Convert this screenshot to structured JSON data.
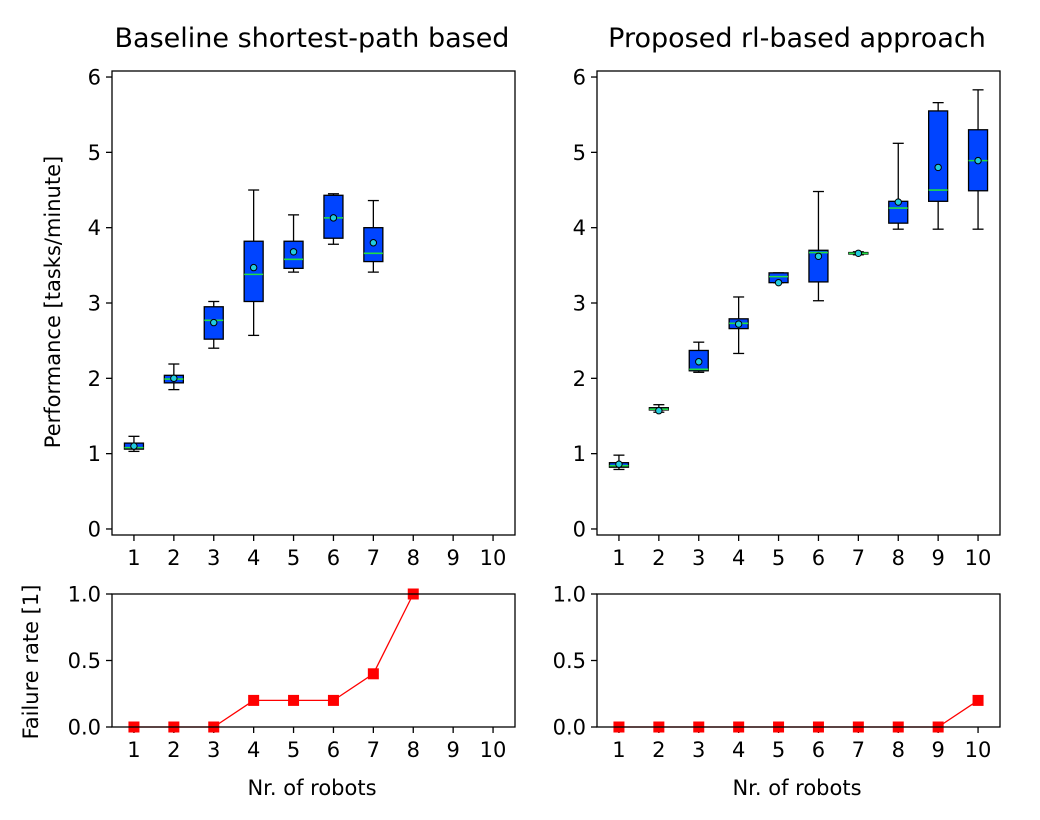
{
  "chart_data": [
    {
      "type": "box",
      "title": "Baseline shortest-path based",
      "ylabel": "Performance [tasks/minute]",
      "xlabel": "",
      "xticks": [
        "1",
        "2",
        "3",
        "4",
        "5",
        "6",
        "7",
        "8",
        "9",
        "10"
      ],
      "yticks": [
        "0",
        "1",
        "2",
        "3",
        "4",
        "5",
        "6"
      ],
      "ylim": [
        -0.08,
        6.08
      ],
      "boxes": [
        {
          "x": 1,
          "whislo": 1.03,
          "q1": 1.06,
          "med": 1.08,
          "q3": 1.14,
          "whishi": 1.23,
          "mean": 1.1
        },
        {
          "x": 2,
          "whislo": 1.85,
          "q1": 1.94,
          "med": 1.99,
          "q3": 2.04,
          "whishi": 2.19,
          "mean": 2.0
        },
        {
          "x": 3,
          "whislo": 2.4,
          "q1": 2.52,
          "med": 2.77,
          "q3": 2.95,
          "whishi": 3.02,
          "mean": 2.74
        },
        {
          "x": 4,
          "whislo": 2.57,
          "q1": 3.02,
          "med": 3.38,
          "q3": 3.82,
          "whishi": 4.5,
          "mean": 3.47
        },
        {
          "x": 5,
          "whislo": 3.41,
          "q1": 3.46,
          "med": 3.58,
          "q3": 3.82,
          "whishi": 4.17,
          "mean": 3.68
        },
        {
          "x": 6,
          "whislo": 3.78,
          "q1": 3.86,
          "med": 4.13,
          "q3": 4.43,
          "whishi": 4.45,
          "mean": 4.13
        },
        {
          "x": 7,
          "whislo": 3.41,
          "q1": 3.55,
          "med": 3.66,
          "q3": 4.0,
          "whishi": 4.36,
          "mean": 3.8
        }
      ]
    },
    {
      "type": "box",
      "title": "Proposed rl-based approach",
      "ylabel": "",
      "xlabel": "",
      "xticks": [
        "1",
        "2",
        "3",
        "4",
        "5",
        "6",
        "7",
        "8",
        "9",
        "10"
      ],
      "yticks": [
        "0",
        "1",
        "2",
        "3",
        "4",
        "5",
        "6"
      ],
      "ylim": [
        -0.08,
        6.08
      ],
      "boxes": [
        {
          "x": 1,
          "whislo": 0.79,
          "q1": 0.82,
          "med": 0.84,
          "q3": 0.88,
          "whishi": 0.98,
          "mean": 0.86
        },
        {
          "x": 2,
          "whislo": 1.55,
          "q1": 1.58,
          "med": 1.59,
          "q3": 1.61,
          "whishi": 1.65,
          "mean": 1.57
        },
        {
          "x": 3,
          "whislo": 2.08,
          "q1": 2.1,
          "med": 2.12,
          "q3": 2.37,
          "whishi": 2.48,
          "mean": 2.22
        },
        {
          "x": 4,
          "whislo": 2.33,
          "q1": 2.66,
          "med": 2.73,
          "q3": 2.79,
          "whishi": 3.08,
          "mean": 2.72
        },
        {
          "x": 5,
          "whislo": 3.27,
          "q1": 3.27,
          "med": 3.35,
          "q3": 3.4,
          "whishi": 3.4,
          "mean": 3.27
        },
        {
          "x": 6,
          "whislo": 3.03,
          "q1": 3.28,
          "med": 3.67,
          "q3": 3.7,
          "whishi": 4.48,
          "mean": 3.62
        },
        {
          "x": 7,
          "whislo": 3.64,
          "q1": 3.65,
          "med": 3.66,
          "q3": 3.67,
          "whishi": 3.68,
          "mean": 3.66
        },
        {
          "x": 8,
          "whislo": 3.98,
          "q1": 4.06,
          "med": 4.26,
          "q3": 4.35,
          "whishi": 5.12,
          "mean": 4.34
        },
        {
          "x": 9,
          "whislo": 3.98,
          "q1": 4.35,
          "med": 4.5,
          "q3": 5.55,
          "whishi": 5.66,
          "mean": 4.8
        },
        {
          "x": 10,
          "whislo": 3.98,
          "q1": 4.49,
          "med": 4.89,
          "q3": 5.3,
          "whishi": 5.83,
          "mean": 4.89
        }
      ]
    },
    {
      "type": "line",
      "title": "",
      "ylabel": "Failure rate [1]",
      "xlabel": "Nr. of robots",
      "xticks": [
        "1",
        "2",
        "3",
        "4",
        "5",
        "6",
        "7",
        "8",
        "9",
        "10"
      ],
      "yticks": [
        "0.0",
        "0.5",
        "1.0"
      ],
      "ylim": [
        0,
        1.0
      ],
      "x": [
        1,
        2,
        3,
        4,
        5,
        6,
        7,
        8
      ],
      "y": [
        0.0,
        0.0,
        0.0,
        0.2,
        0.2,
        0.2,
        0.4,
        1.0
      ]
    },
    {
      "type": "line",
      "title": "",
      "ylabel": "",
      "xlabel": "Nr. of robots",
      "xticks": [
        "1",
        "2",
        "3",
        "4",
        "5",
        "6",
        "7",
        "8",
        "9",
        "10"
      ],
      "yticks": [
        "0.0",
        "0.5",
        "1.0"
      ],
      "ylim": [
        0,
        1.0
      ],
      "x": [
        1,
        2,
        3,
        4,
        5,
        6,
        7,
        8,
        9,
        10
      ],
      "y": [
        0.0,
        0.0,
        0.0,
        0.0,
        0.0,
        0.0,
        0.0,
        0.0,
        0.0,
        0.2
      ]
    }
  ],
  "colors": {
    "box_fill": "#0044ff",
    "median": "#22dd44",
    "mean_marker": "#22ccdd",
    "failure_line": "#ff0000"
  }
}
